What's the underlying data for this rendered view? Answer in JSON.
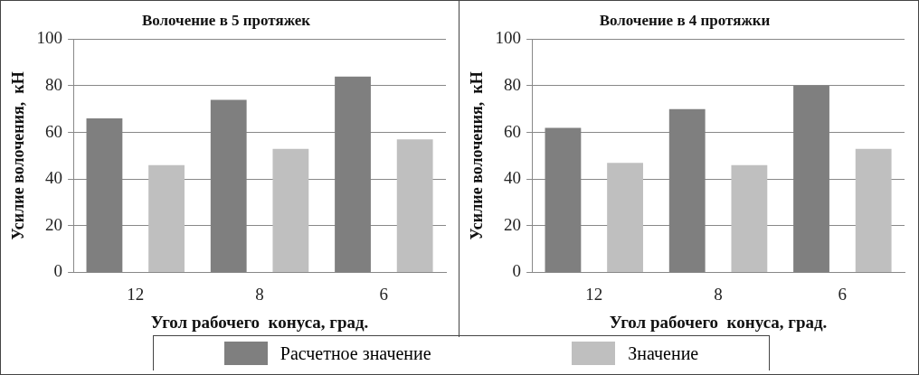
{
  "chart_data": [
    {
      "type": "bar",
      "title": "Волочение в 5 протяжек",
      "xlabel": "Угол рабочего  конуса, град.",
      "ylabel": "Усилие волочения,  кН",
      "categories": [
        "12",
        "8",
        "6"
      ],
      "series": [
        {
          "name": "Расчетное значение",
          "color": "#7f7f7f",
          "values": [
            66,
            74,
            84
          ]
        },
        {
          "name": "Значение",
          "color": "#bfbfbf",
          "values": [
            46,
            53,
            57
          ]
        }
      ],
      "ylim": [
        0,
        100
      ],
      "yticks": [
        0,
        20,
        40,
        60,
        80,
        100
      ],
      "grid": "y",
      "legend": "bottom"
    },
    {
      "type": "bar",
      "title": "Волочение в 4 протяжки",
      "xlabel": "Угол рабочего  конуса, град.",
      "ylabel": "Усилие волочения,  кН",
      "categories": [
        "12",
        "8",
        "6"
      ],
      "series": [
        {
          "color": "#7f7f7f",
          "values": [
            62,
            70,
            80
          ]
        },
        {
          "color": "#bfbfbf",
          "values": [
            47,
            46,
            53
          ]
        }
      ],
      "ylim": [
        0,
        100
      ],
      "yticks": [
        0,
        20,
        40,
        60,
        80,
        100
      ],
      "grid": "y"
    }
  ]
}
